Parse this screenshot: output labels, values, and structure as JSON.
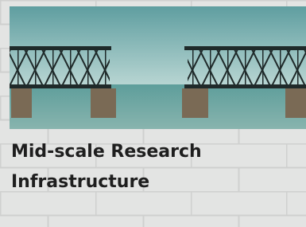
{
  "card": {
    "title": "Mid-scale Research Infrastructure"
  }
}
